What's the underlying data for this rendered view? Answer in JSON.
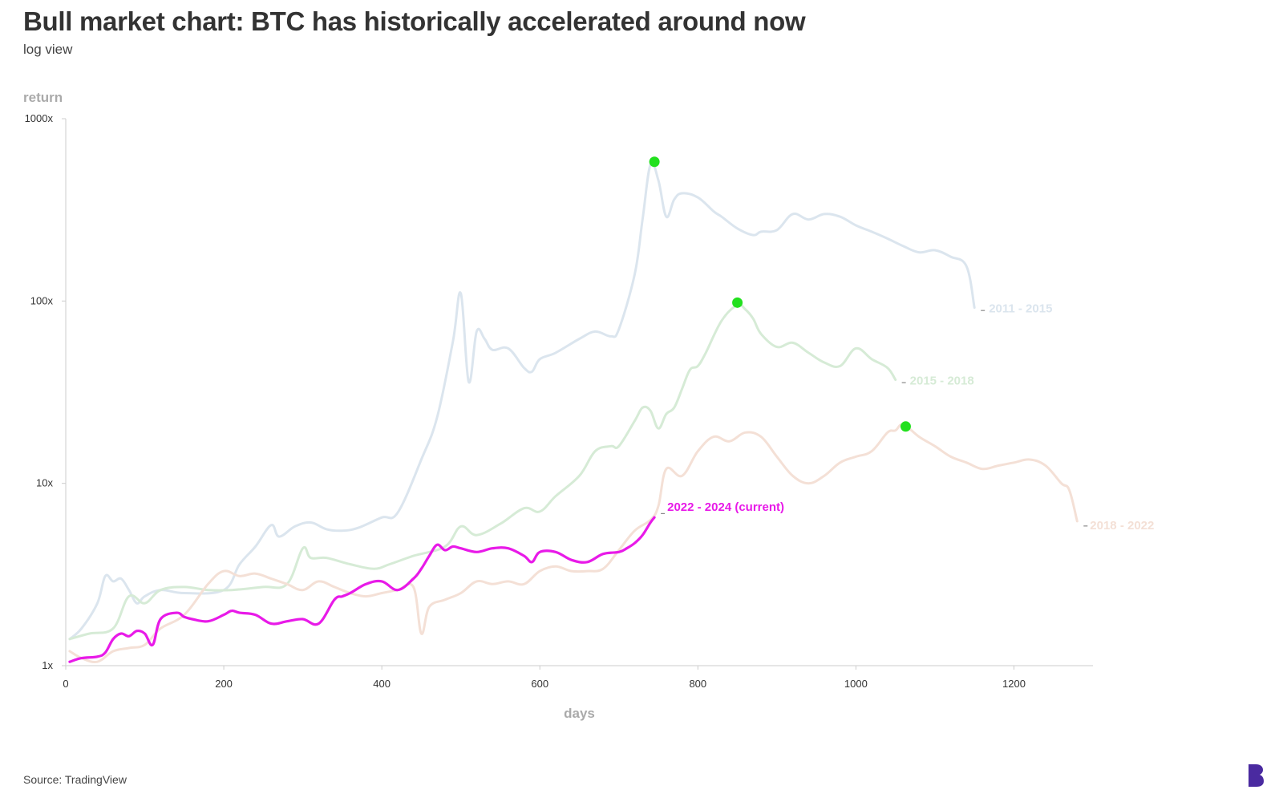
{
  "header": {
    "title": "Bull market chart: BTC has historically accelerated around now",
    "subtitle": "log view"
  },
  "footer": {
    "source": "Source: TradingView",
    "logo_icon": "brand-b-logo-icon",
    "logo_color": "#4a2aa0"
  },
  "chart_data": {
    "type": "line",
    "xlabel": "days",
    "ylabel": "return",
    "xlim": [
      0,
      1300
    ],
    "ylim": [
      1,
      1000
    ],
    "yscale": "log",
    "xticks": [
      0,
      200,
      400,
      600,
      800,
      1000,
      1200
    ],
    "xtick_labels": [
      "0",
      "200",
      "400",
      "600",
      "800",
      "1000",
      "1200"
    ],
    "yticks": [
      1,
      10,
      100,
      1000
    ],
    "ytick_labels": [
      "1x",
      "10x",
      "100x",
      "1000x"
    ],
    "grid": false,
    "legend": "none (series labelled at line ends)",
    "series": [
      {
        "name": "2011 - 2015",
        "color": "#dbe5ee",
        "x": [
          5,
          20,
          40,
          50,
          60,
          70,
          80,
          90,
          100,
          120,
          150,
          200,
          220,
          240,
          260,
          270,
          290,
          310,
          330,
          350,
          370,
          400,
          420,
          450,
          470,
          490,
          500,
          510,
          520,
          530,
          540,
          560,
          580,
          590,
          600,
          620,
          650,
          670,
          690,
          700,
          720,
          730,
          740,
          750,
          760,
          770,
          780,
          800,
          820,
          830,
          850,
          870,
          880,
          900,
          920,
          940,
          960,
          980,
          1000,
          1020,
          1040,
          1060,
          1080,
          1100,
          1120,
          1140,
          1150
        ],
        "y": [
          1.4,
          1.6,
          2.2,
          3.1,
          2.9,
          3.0,
          2.6,
          2.2,
          2.4,
          2.6,
          2.5,
          2.6,
          3.6,
          4.5,
          5.9,
          5.1,
          5.8,
          6.1,
          5.6,
          5.5,
          5.7,
          6.5,
          6.9,
          13.5,
          23,
          60,
          110,
          36,
          68,
          62,
          54,
          55,
          43,
          41,
          48,
          52,
          62,
          68,
          64,
          70,
          140,
          280,
          560,
          460,
          290,
          360,
          390,
          370,
          310,
          290,
          250,
          230,
          240,
          245,
          300,
          280,
          300,
          290,
          260,
          240,
          220,
          200,
          185,
          190,
          175,
          155,
          92
        ]
      },
      {
        "name": "2015 - 2018",
        "color": "#d6ebd6",
        "x": [
          5,
          30,
          60,
          80,
          100,
          120,
          150,
          180,
          210,
          250,
          280,
          300,
          310,
          330,
          360,
          390,
          410,
          440,
          480,
          500,
          520,
          550,
          580,
          600,
          620,
          650,
          670,
          690,
          700,
          720,
          730,
          740,
          750,
          760,
          770,
          780,
          790,
          800,
          810,
          830,
          850,
          860,
          870,
          880,
          900,
          920,
          940,
          960,
          980,
          1000,
          1020,
          1040,
          1050
        ],
        "y": [
          1.4,
          1.5,
          1.6,
          2.4,
          2.2,
          2.6,
          2.7,
          2.6,
          2.6,
          2.7,
          2.8,
          4.4,
          3.9,
          3.9,
          3.6,
          3.4,
          3.6,
          4.0,
          4.5,
          5.8,
          5.2,
          6.0,
          7.3,
          7.0,
          8.5,
          11,
          15,
          16,
          16,
          22,
          26,
          25,
          20,
          24,
          26,
          33,
          42,
          44,
          52,
          78,
          95,
          90,
          80,
          66,
          56,
          59,
          52,
          46,
          44,
          55,
          48,
          43,
          37
        ]
      },
      {
        "name": "2018 - 2022",
        "color": "#f4e0d6",
        "x": [
          5,
          20,
          40,
          60,
          80,
          100,
          120,
          150,
          180,
          200,
          220,
          240,
          260,
          280,
          300,
          320,
          340,
          360,
          380,
          400,
          420,
          440,
          450,
          460,
          480,
          500,
          520,
          540,
          560,
          580,
          600,
          620,
          640,
          660,
          680,
          700,
          720,
          740,
          750,
          760,
          780,
          800,
          820,
          840,
          860,
          880,
          900,
          920,
          940,
          960,
          980,
          1000,
          1020,
          1040,
          1050,
          1060,
          1080,
          1100,
          1120,
          1140,
          1160,
          1180,
          1200,
          1220,
          1240,
          1260,
          1270,
          1280
        ],
        "y": [
          1.2,
          1.1,
          1.05,
          1.2,
          1.25,
          1.3,
          1.6,
          1.9,
          2.8,
          3.3,
          3.1,
          3.2,
          3.0,
          2.8,
          2.6,
          2.9,
          2.7,
          2.5,
          2.4,
          2.5,
          2.6,
          2.7,
          1.5,
          2.1,
          2.3,
          2.5,
          2.9,
          2.8,
          2.9,
          2.8,
          3.3,
          3.5,
          3.3,
          3.3,
          3.4,
          4.3,
          5.5,
          6.3,
          7.5,
          12,
          11,
          15,
          18,
          17,
          19,
          18,
          14,
          11,
          10,
          11,
          13,
          14,
          15,
          19,
          19.5,
          21,
          18,
          16,
          14,
          13,
          12,
          12.5,
          13,
          13.5,
          12.5,
          10,
          9.2,
          6.2
        ]
      },
      {
        "name": "2022 - 2024 (current)",
        "color": "#e81ae8",
        "x": [
          5,
          20,
          40,
          50,
          60,
          70,
          80,
          90,
          100,
          110,
          120,
          140,
          150,
          160,
          180,
          200,
          210,
          220,
          240,
          260,
          280,
          300,
          320,
          340,
          350,
          360,
          380,
          400,
          420,
          440,
          450,
          460,
          470,
          480,
          490,
          500,
          520,
          540,
          560,
          580,
          590,
          600,
          620,
          640,
          660,
          680,
          700,
          710,
          720,
          730,
          740,
          745
        ],
        "y": [
          1.05,
          1.1,
          1.12,
          1.18,
          1.4,
          1.5,
          1.45,
          1.55,
          1.5,
          1.3,
          1.8,
          1.95,
          1.85,
          1.8,
          1.75,
          1.9,
          2.0,
          1.95,
          1.9,
          1.7,
          1.75,
          1.8,
          1.7,
          2.3,
          2.4,
          2.5,
          2.8,
          2.9,
          2.6,
          3.0,
          3.4,
          4.0,
          4.6,
          4.3,
          4.5,
          4.4,
          4.2,
          4.4,
          4.4,
          4.0,
          3.7,
          4.2,
          4.2,
          3.8,
          3.7,
          4.1,
          4.2,
          4.4,
          4.7,
          5.2,
          6.1,
          6.5
        ]
      }
    ],
    "peak_markers": {
      "color": "#22e01e",
      "points": [
        {
          "x": 745,
          "y": 580
        },
        {
          "x": 850,
          "y": 98
        },
        {
          "x": 1063,
          "y": 20.5
        }
      ]
    }
  }
}
